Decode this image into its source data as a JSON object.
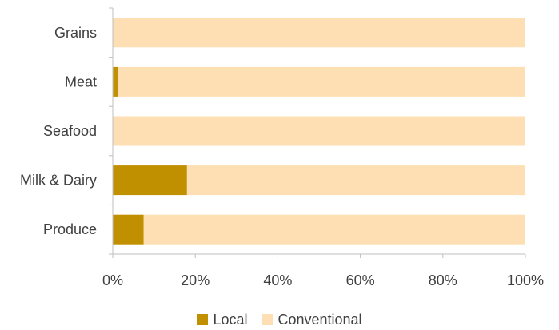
{
  "chart_data": {
    "type": "bar",
    "orientation": "horizontal",
    "stacked": true,
    "percent": true,
    "categories": [
      "Grains",
      "Meat",
      "Seafood",
      "Milk & Dairy",
      "Produce"
    ],
    "series": [
      {
        "name": "Local",
        "color": "#C09000",
        "values": [
          0,
          1.2,
          0,
          18,
          7.5
        ]
      },
      {
        "name": "Conventional",
        "color": "#FDDFB3",
        "values": [
          100,
          98.8,
          100,
          82,
          92.5
        ]
      }
    ],
    "xlim": [
      0,
      100
    ],
    "x_ticks": [
      "0%",
      "20%",
      "40%",
      "60%",
      "80%",
      "100%"
    ],
    "grid": false,
    "legend_position": "bottom"
  }
}
